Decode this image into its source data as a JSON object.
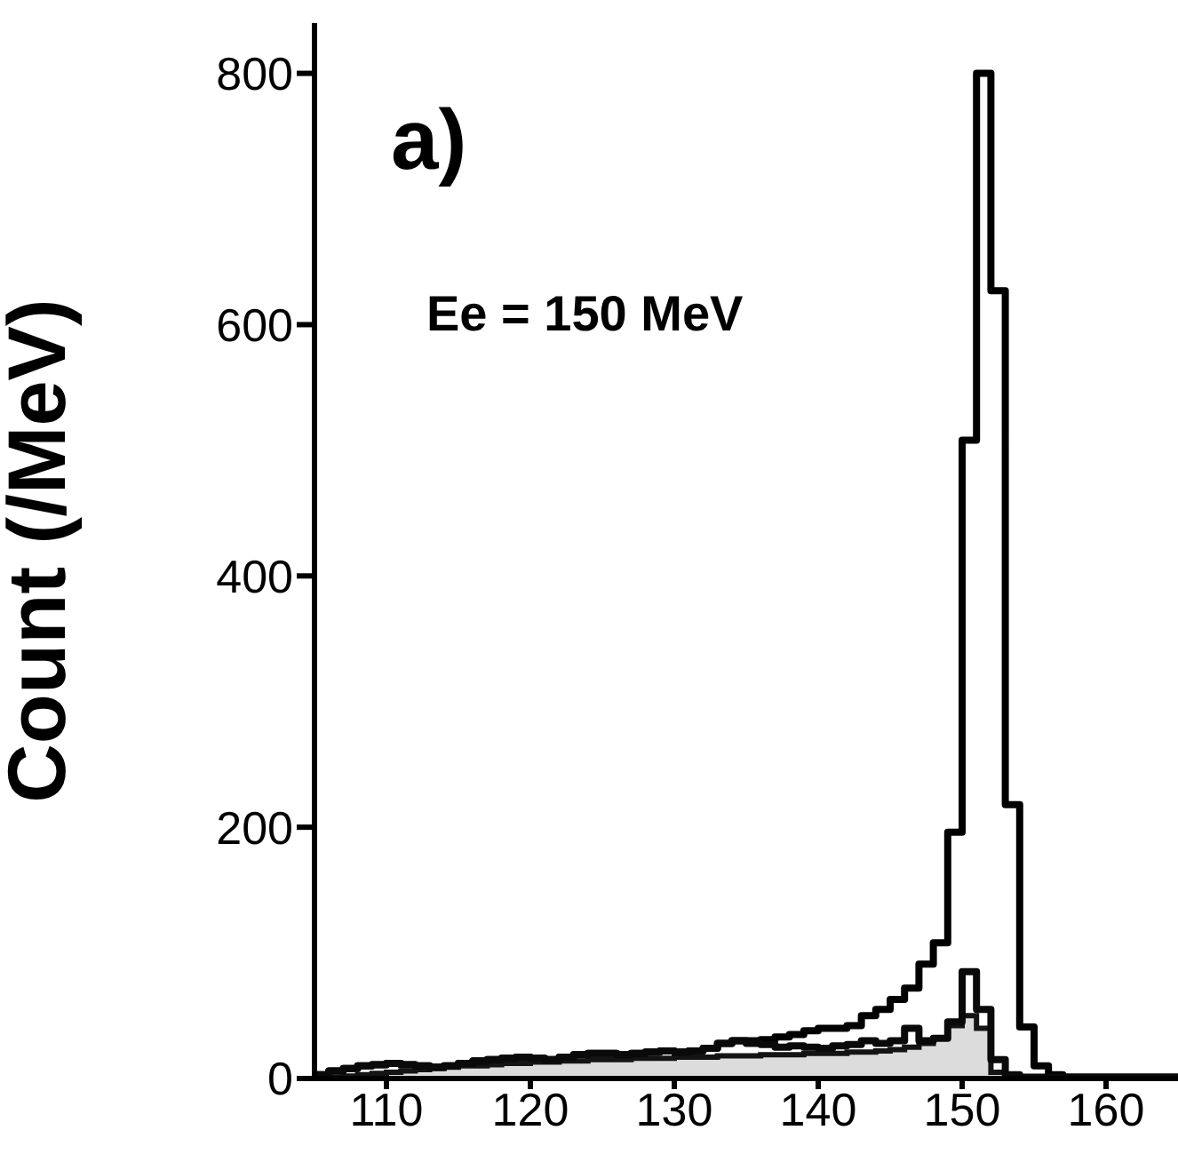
{
  "chart_data": {
    "type": "histogram",
    "ylabel": "Count (/MeV)",
    "annotations": [
      "a)",
      "Ee = 150 MeV"
    ],
    "bins": [
      105,
      106,
      107,
      108,
      109,
      110,
      111,
      112,
      113,
      114,
      115,
      116,
      117,
      118,
      119,
      120,
      121,
      122,
      123,
      124,
      125,
      126,
      127,
      128,
      129,
      130,
      131,
      132,
      133,
      134,
      135,
      136,
      137,
      138,
      139,
      140,
      141,
      142,
      143,
      144,
      145,
      146,
      147,
      148,
      149,
      150,
      151,
      152,
      153,
      154,
      155,
      156,
      157,
      158,
      159,
      160,
      161,
      162,
      163,
      164,
      165
    ],
    "series": [
      {
        "color": "#000000",
        "values": [
          3,
          6,
          8,
          10,
          11,
          12,
          11,
          10,
          9,
          10,
          12,
          14,
          15,
          16,
          17,
          16,
          15,
          17,
          19,
          20,
          20,
          19,
          20,
          21,
          22,
          21,
          22,
          24,
          28,
          30,
          30,
          31,
          33,
          35,
          38,
          40,
          40,
          42,
          50,
          55,
          63,
          72,
          91,
          108,
          196,
          508,
          800,
          627,
          218,
          41,
          10,
          3,
          1,
          1,
          1,
          1,
          1,
          1,
          1,
          1
        ]
      },
      {
        "color": "#0a0a0a",
        "values": [
          3,
          6,
          8,
          10,
          11,
          12,
          11,
          10,
          9,
          10,
          12,
          14,
          15,
          16,
          17,
          16,
          15,
          17,
          19,
          20,
          20,
          19,
          20,
          21,
          22,
          21,
          22,
          24,
          28,
          30,
          28,
          27,
          25,
          26,
          25,
          24,
          26,
          27,
          30,
          28,
          30,
          40,
          30,
          32,
          45,
          85,
          55,
          15,
          3,
          1,
          1,
          1,
          1,
          1,
          1,
          1,
          1,
          1,
          1,
          1
        ]
      },
      {
        "type": "area",
        "color": "#141414",
        "x": [
          105.5,
          106.5,
          107.5,
          108.5,
          109.5,
          110.5,
          111.5,
          112.5,
          113.5,
          114.5,
          115.5,
          116.5,
          117.5,
          118.5,
          119.5,
          120.5,
          121.5,
          122.5,
          123.5,
          124.5,
          125.5,
          126.5,
          127.5,
          128.5,
          129.5,
          130.5,
          131.5,
          132.5,
          133.5,
          134.5,
          135.5,
          136.5,
          137.5,
          138.5,
          139.5,
          140.5,
          141.5,
          142.5,
          143.5,
          144.5,
          145.5,
          146.5,
          147.5,
          148.5,
          149.5,
          150.5,
          151.5,
          152.5,
          153.5,
          154.5,
          155.5,
          156.5,
          157.5,
          158.5,
          159.5,
          160.5,
          161.5,
          162.5,
          163.5,
          164.5
        ],
        "values": [
          0,
          1,
          2,
          3,
          4,
          5,
          6,
          7,
          8,
          9,
          10,
          10,
          11,
          12,
          12,
          13,
          13,
          14,
          14,
          15,
          15,
          15,
          16,
          16,
          16,
          17,
          17,
          17,
          18,
          18,
          18,
          19,
          19,
          19,
          20,
          20,
          20,
          21,
          21,
          22,
          23,
          25,
          28,
          32,
          42,
          50,
          40,
          5,
          1,
          0,
          0,
          0,
          0,
          0,
          0,
          0,
          0,
          0,
          0,
          0
        ]
      }
    ],
    "xlim": [
      105,
      165
    ],
    "xticks": [
      110,
      120,
      130,
      140,
      150,
      160
    ],
    "ylim": [
      0,
      840
    ],
    "yticks": [
      0,
      200,
      400,
      600,
      800
    ]
  }
}
